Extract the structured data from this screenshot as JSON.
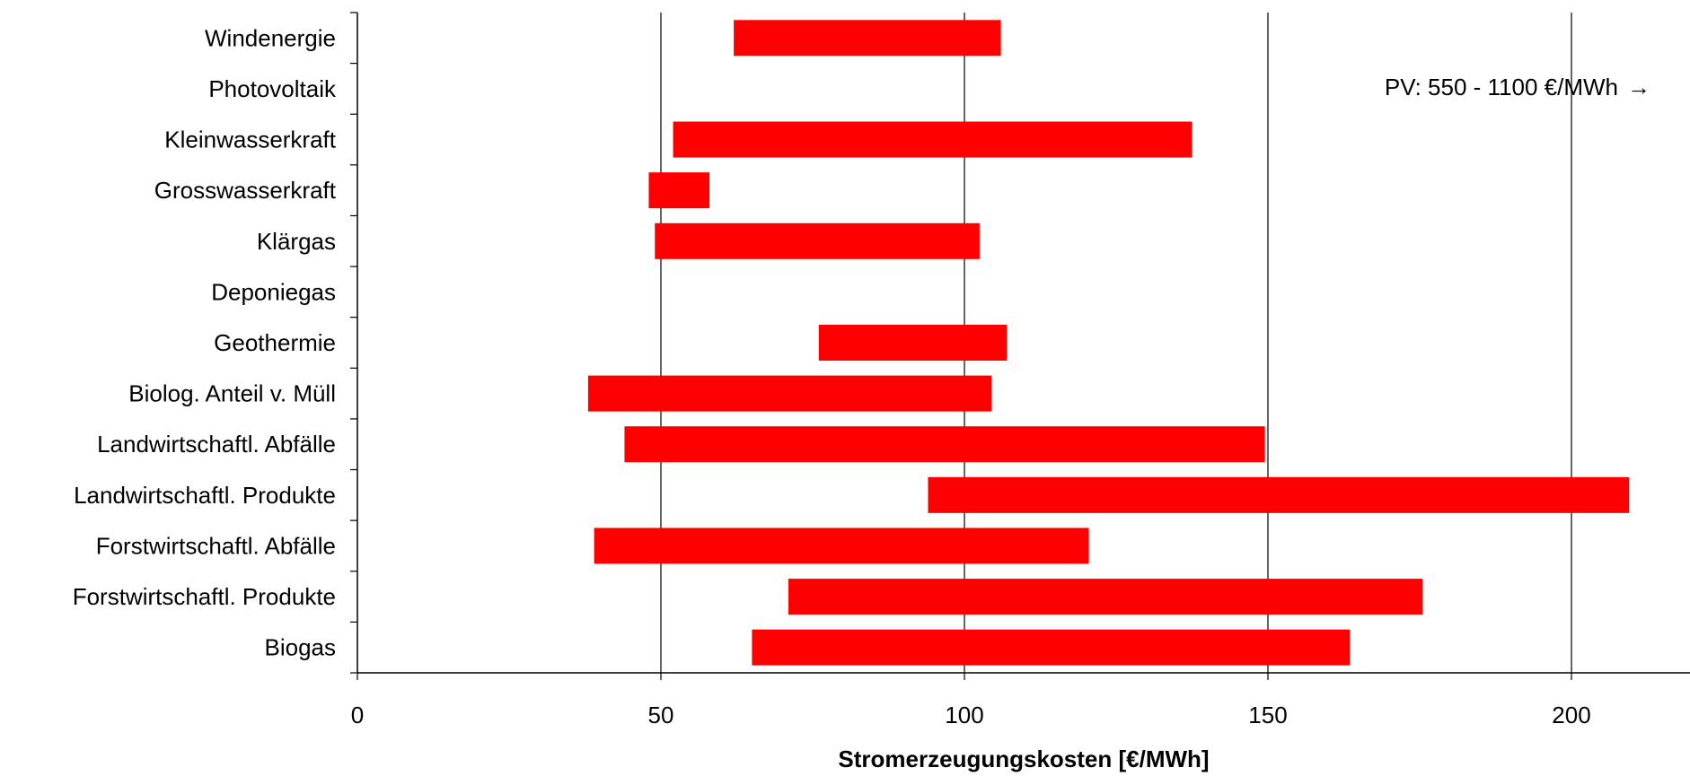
{
  "chart_data": {
    "type": "bar",
    "orientation": "horizontal",
    "title": "",
    "xlabel": "Stromerzeugungskosten [€/MWh]",
    "ylabel": "",
    "xlim": [
      0,
      220
    ],
    "x_ticks": [
      0,
      50,
      100,
      150,
      200
    ],
    "grid": "vertical",
    "bar_color": "#ff0000",
    "categories": [
      "Windenergie",
      "Photovoltaik",
      "Kleinwasserkraft",
      "Grosswasserkraft",
      "Klärgas",
      "Deponiegas",
      "Geothermie",
      "Biolog. Anteil v. Müll",
      "Landwirtschaftl. Abfälle",
      "Landwirtschaftl. Produkte",
      "Forstwirtschaftl. Abfälle",
      "Forstwirtschaftl. Produkte",
      "Biogas"
    ],
    "ranges": [
      [
        62,
        106
      ],
      null,
      [
        52,
        137.5
      ],
      [
        48,
        58
      ],
      [
        49,
        102.5
      ],
      null,
      [
        76,
        107
      ],
      [
        38,
        104.5
      ],
      [
        44,
        149.5
      ],
      [
        94,
        209.5
      ],
      [
        39,
        120.5
      ],
      [
        71,
        175.5
      ],
      [
        65,
        163.5
      ]
    ],
    "annotation": {
      "text": "PV: 550 - 1100 €/MWh",
      "arrow": "→"
    }
  }
}
